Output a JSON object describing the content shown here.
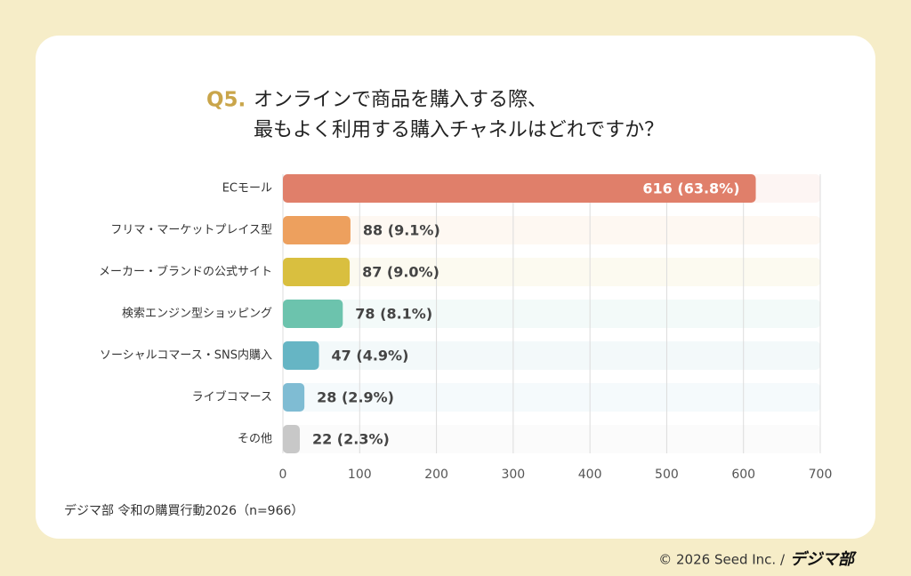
{
  "chart_data": {
    "type": "bar",
    "orientation": "horizontal",
    "question_number": "Q5.",
    "title_lines": [
      "オンラインで商品を購入する際、",
      "最もよく利用する購入チャネルはどれですか？"
    ],
    "categories": [
      "ECモール",
      "フリマ・マーケットプレイス型",
      "メーカー・ブランドの公式サイト",
      "検索エンジン型ショッピング",
      "ソーシャルコマース・SNS内購入",
      "ライブコマース",
      "その他"
    ],
    "values": [
      616,
      88,
      87,
      78,
      47,
      28,
      22
    ],
    "value_labels": [
      "616 (63.8%)",
      "88 (9.1%)",
      "87 (9.0%)",
      "78 (8.1%)",
      "47 (4.9%)",
      "28 (2.9%)",
      "22 (2.3%)"
    ],
    "colors": [
      "#e07f6a",
      "#eda05e",
      "#d9bf3f",
      "#6cc3ad",
      "#66b5c4",
      "#7fbcd3",
      "#c8c8c8"
    ],
    "xlim": [
      0,
      700
    ],
    "xticks": [
      0,
      100,
      200,
      300,
      400,
      500,
      600,
      700
    ],
    "grid": true,
    "source": "デジマ部 令和の購買行動2026（n=966）",
    "copyright": "© 2026 Seed Inc. /",
    "logo": "デジマ部"
  }
}
